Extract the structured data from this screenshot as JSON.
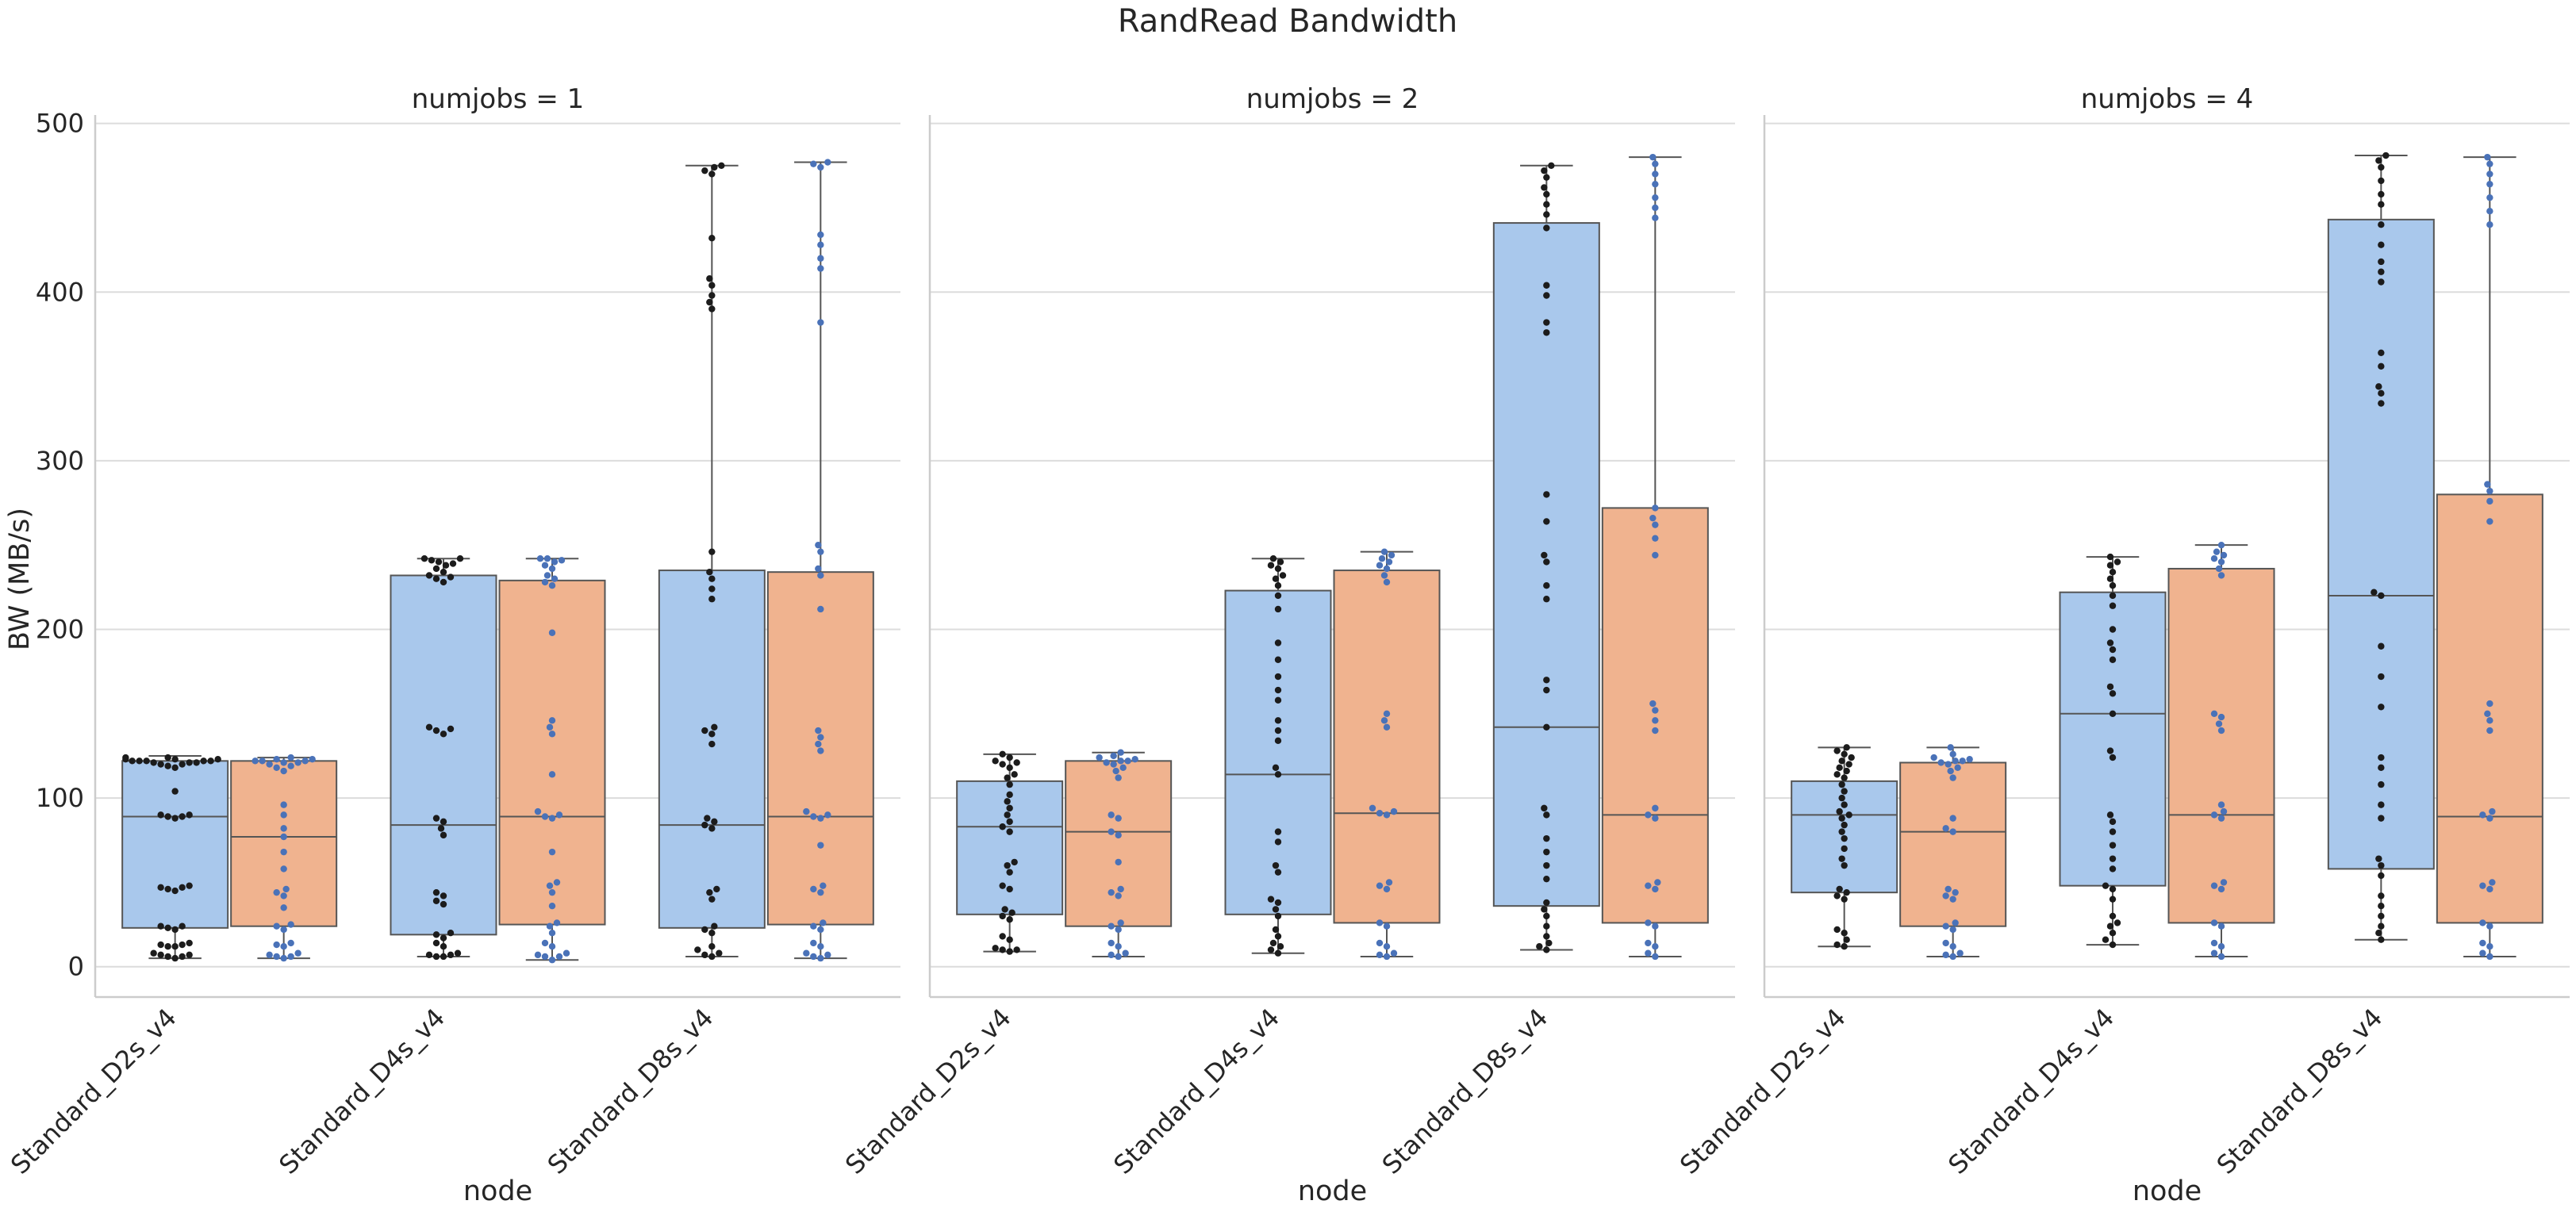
{
  "chart_data": {
    "type": "box",
    "title": "RandRead Bandwidth",
    "xlabel": "node",
    "ylabel": "BW (MB/s)",
    "ylim": [
      -18,
      505
    ],
    "yticks": [
      0,
      100,
      200,
      300,
      400,
      500
    ],
    "grid": "horizontal",
    "categories": [
      "Standard_D2s_v4",
      "Standard_D4s_v4",
      "Standard_D8s_v4"
    ],
    "series_colors": {
      "box": [
        "#a9c8ec",
        "#f0b38f"
      ],
      "points": [
        "#1c1c1c",
        "#4a72b8"
      ]
    },
    "panels": [
      {
        "title": "numjobs = 1",
        "groups": [
          {
            "category": "Standard_D2s_v4",
            "boxes": [
              {
                "q1": 23,
                "median": 89,
                "q3": 122,
                "whisker_low": 5,
                "whisker_high": 125,
                "points": [
                  5,
                  6,
                  6,
                  7,
                  7,
                  8,
                  12,
                  12,
                  13,
                  13,
                  14,
                  22,
                  23,
                  24,
                  24,
                  45,
                  46,
                  47,
                  47,
                  48,
                  88,
                  89,
                  89,
                  90,
                  90,
                  104,
                  118,
                  119,
                  120,
                  120,
                  121,
                  121,
                  121,
                  122,
                  122,
                  122,
                  122,
                  122,
                  123,
                  123,
                  123,
                  124,
                  124
                ]
              },
              {
                "q1": 24,
                "median": 77,
                "q3": 122,
                "whisker_low": 5,
                "whisker_high": 124,
                "points": [
                  5,
                  6,
                  6,
                  7,
                  8,
                  12,
                  13,
                  14,
                  22,
                  24,
                  25,
                  35,
                  42,
                  44,
                  46,
                  58,
                  68,
                  77,
                  82,
                  90,
                  96,
                  116,
                  118,
                  119,
                  120,
                  121,
                  121,
                  122,
                  122,
                  122,
                  123,
                  123,
                  124
                ]
              }
            ]
          },
          {
            "category": "Standard_D4s_v4",
            "boxes": [
              {
                "q1": 19,
                "median": 84,
                "q3": 232,
                "whisker_low": 6,
                "whisker_high": 242,
                "points": [
                  6,
                  6,
                  7,
                  7,
                  8,
                  12,
                  14,
                  17,
                  19,
                  20,
                  37,
                  39,
                  42,
                  44,
                  78,
                  82,
                  86,
                  88,
                  138,
                  140,
                  141,
                  142,
                  228,
                  230,
                  231,
                  232,
                  234,
                  236,
                  238,
                  239,
                  240,
                  241,
                  242,
                  242
                ]
              },
              {
                "q1": 25,
                "median": 89,
                "q3": 229,
                "whisker_low": 4,
                "whisker_high": 242,
                "points": [
                  4,
                  6,
                  6,
                  7,
                  8,
                  12,
                  14,
                  20,
                  24,
                  26,
                  36,
                  44,
                  48,
                  50,
                  68,
                  88,
                  89,
                  90,
                  92,
                  114,
                  138,
                  142,
                  146,
                  198,
                  226,
                  228,
                  230,
                  232,
                  236,
                  238,
                  240,
                  241,
                  242,
                  242
                ]
              }
            ]
          },
          {
            "category": "Standard_D8s_v4",
            "boxes": [
              {
                "q1": 23,
                "median": 84,
                "q3": 235,
                "whisker_low": 6,
                "whisker_high": 475,
                "points": [
                  6,
                  7,
                  8,
                  10,
                  12,
                  20,
                  22,
                  24,
                  40,
                  44,
                  46,
                  82,
                  84,
                  86,
                  88,
                  132,
                  138,
                  140,
                  142,
                  218,
                  224,
                  230,
                  234,
                  246,
                  390,
                  394,
                  398,
                  404,
                  408,
                  432,
                  470,
                  472,
                  474,
                  475
                ]
              },
              {
                "q1": 25,
                "median": 89,
                "q3": 234,
                "whisker_low": 5,
                "whisker_high": 477,
                "points": [
                  5,
                  6,
                  7,
                  8,
                  12,
                  14,
                  22,
                  24,
                  26,
                  44,
                  46,
                  48,
                  72,
                  88,
                  89,
                  90,
                  92,
                  128,
                  132,
                  136,
                  140,
                  212,
                  232,
                  236,
                  246,
                  250,
                  382,
                  414,
                  420,
                  428,
                  434,
                  474,
                  476,
                  477
                ]
              }
            ]
          }
        ]
      },
      {
        "title": "numjobs = 2",
        "groups": [
          {
            "category": "Standard_D2s_v4",
            "boxes": [
              {
                "q1": 31,
                "median": 83,
                "q3": 110,
                "whisker_low": 9,
                "whisker_high": 126,
                "points": [
                  9,
                  10,
                  10,
                  11,
                  16,
                  18,
                  28,
                  30,
                  32,
                  34,
                  46,
                  48,
                  56,
                  60,
                  62,
                  80,
                  83,
                  86,
                  90,
                  94,
                  98,
                  102,
                  108,
                  112,
                  114,
                  118,
                  120,
                  121,
                  122,
                  124,
                  126
                ]
              },
              {
                "q1": 24,
                "median": 80,
                "q3": 122,
                "whisker_low": 6,
                "whisker_high": 127,
                "points": [
                  6,
                  7,
                  8,
                  12,
                  14,
                  22,
                  24,
                  26,
                  42,
                  44,
                  46,
                  62,
                  78,
                  80,
                  88,
                  90,
                  112,
                  116,
                  118,
                  120,
                  121,
                  122,
                  122,
                  123,
                  124,
                  125,
                  127
                ]
              }
            ]
          },
          {
            "category": "Standard_D4s_v4",
            "boxes": [
              {
                "q1": 31,
                "median": 114,
                "q3": 223,
                "whisker_low": 8,
                "whisker_high": 242,
                "points": [
                  8,
                  10,
                  12,
                  14,
                  18,
                  22,
                  30,
                  34,
                  38,
                  40,
                  56,
                  60,
                  74,
                  80,
                  114,
                  118,
                  134,
                  140,
                  146,
                  158,
                  164,
                  172,
                  182,
                  192,
                  212,
                  220,
                  226,
                  230,
                  232,
                  236,
                  238,
                  240,
                  242
                ]
              },
              {
                "q1": 26,
                "median": 91,
                "q3": 235,
                "whisker_low": 6,
                "whisker_high": 246,
                "points": [
                  6,
                  7,
                  8,
                  12,
                  14,
                  24,
                  26,
                  46,
                  48,
                  50,
                  90,
                  91,
                  92,
                  94,
                  142,
                  146,
                  150,
                  228,
                  232,
                  236,
                  238,
                  240,
                  242,
                  244,
                  246
                ]
              }
            ]
          },
          {
            "category": "Standard_D8s_v4",
            "boxes": [
              {
                "q1": 36,
                "median": 142,
                "q3": 441,
                "whisker_low": 10,
                "whisker_high": 475,
                "points": [
                  10,
                  12,
                  14,
                  18,
                  24,
                  30,
                  34,
                  38,
                  52,
                  60,
                  68,
                  76,
                  90,
                  94,
                  142,
                  164,
                  170,
                  218,
                  226,
                  240,
                  244,
                  264,
                  280,
                  376,
                  382,
                  398,
                  404,
                  438,
                  446,
                  452,
                  458,
                  462,
                  468,
                  472,
                  475
                ]
              },
              {
                "q1": 26,
                "median": 90,
                "q3": 272,
                "whisker_low": 6,
                "whisker_high": 480,
                "points": [
                  6,
                  8,
                  12,
                  14,
                  24,
                  26,
                  46,
                  48,
                  50,
                  88,
                  90,
                  94,
                  140,
                  146,
                  152,
                  156,
                  244,
                  254,
                  262,
                  266,
                  272,
                  444,
                  450,
                  456,
                  464,
                  470,
                  476,
                  480
                ]
              }
            ]
          }
        ]
      },
      {
        "title": "numjobs = 4",
        "groups": [
          {
            "category": "Standard_D2s_v4",
            "boxes": [
              {
                "q1": 44,
                "median": 90,
                "q3": 110,
                "whisker_low": 12,
                "whisker_high": 130,
                "points": [
                  12,
                  13,
                  16,
                  20,
                  22,
                  40,
                  42,
                  44,
                  46,
                  60,
                  64,
                  70,
                  76,
                  80,
                  84,
                  88,
                  90,
                  92,
                  96,
                  100,
                  104,
                  108,
                  112,
                  114,
                  116,
                  118,
                  120,
                  122,
                  124,
                  126,
                  128,
                  130
                ]
              },
              {
                "q1": 24,
                "median": 80,
                "q3": 121,
                "whisker_low": 6,
                "whisker_high": 130,
                "points": [
                  6,
                  7,
                  8,
                  12,
                  14,
                  22,
                  24,
                  26,
                  40,
                  42,
                  44,
                  46,
                  80,
                  82,
                  88,
                  112,
                  116,
                  118,
                  120,
                  121,
                  122,
                  122,
                  123,
                  124,
                  126,
                  130
                ]
              }
            ]
          },
          {
            "category": "Standard_D4s_v4",
            "boxes": [
              {
                "q1": 48,
                "median": 150,
                "q3": 222,
                "whisker_low": 13,
                "whisker_high": 243,
                "points": [
                  13,
                  16,
                  20,
                  24,
                  26,
                  30,
                  40,
                  46,
                  48,
                  58,
                  64,
                  72,
                  80,
                  86,
                  90,
                  124,
                  128,
                  150,
                  162,
                  166,
                  182,
                  188,
                  192,
                  200,
                  214,
                  220,
                  226,
                  230,
                  234,
                  238,
                  240,
                  243
                ]
              },
              {
                "q1": 26,
                "median": 90,
                "q3": 236,
                "whisker_low": 6,
                "whisker_high": 250,
                "points": [
                  6,
                  8,
                  12,
                  14,
                  24,
                  26,
                  46,
                  48,
                  50,
                  88,
                  90,
                  92,
                  96,
                  140,
                  144,
                  148,
                  150,
                  232,
                  236,
                  240,
                  242,
                  244,
                  246,
                  250
                ]
              }
            ]
          },
          {
            "category": "Standard_D8s_v4",
            "boxes": [
              {
                "q1": 58,
                "median": 220,
                "q3": 443,
                "whisker_low": 16,
                "whisker_high": 481,
                "points": [
                  16,
                  20,
                  24,
                  30,
                  36,
                  42,
                  54,
                  60,
                  64,
                  88,
                  96,
                  108,
                  118,
                  124,
                  154,
                  172,
                  190,
                  220,
                  222,
                  334,
                  340,
                  344,
                  356,
                  364,
                  406,
                  412,
                  418,
                  428,
                  440,
                  452,
                  458,
                  466,
                  474,
                  478,
                  481
                ]
              },
              {
                "q1": 26,
                "median": 89,
                "q3": 280,
                "whisker_low": 6,
                "whisker_high": 480,
                "points": [
                  6,
                  8,
                  12,
                  14,
                  24,
                  26,
                  46,
                  48,
                  50,
                  88,
                  90,
                  92,
                  140,
                  146,
                  150,
                  156,
                  264,
                  276,
                  282,
                  286,
                  440,
                  448,
                  456,
                  464,
                  470,
                  476,
                  480
                ]
              }
            ]
          }
        ]
      }
    ]
  }
}
